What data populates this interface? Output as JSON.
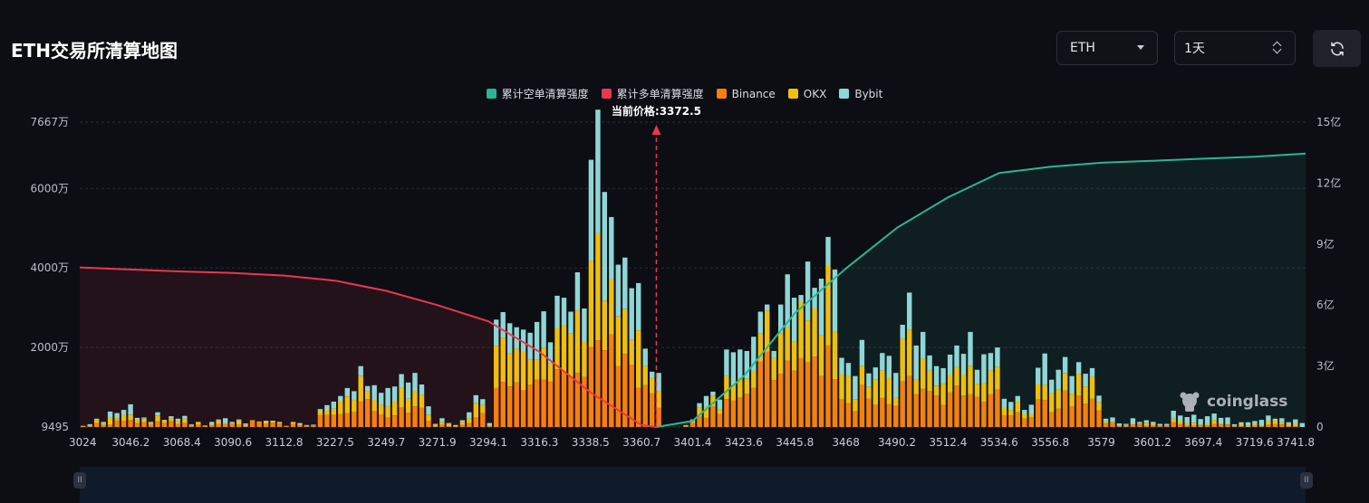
{
  "header": {
    "title": "ETH交易所清算地图",
    "symbol_select": "ETH",
    "interval_select": "1天"
  },
  "icons": {
    "refresh": "refresh-icon",
    "symbol_caret": "chevron-down-icon",
    "interval_caret": "up-down-chevron-icon",
    "logo": "coinglass-logo-icon"
  },
  "watermark": "coinglass",
  "colors": {
    "background": "#0d0e13",
    "short_cumulative": "#2bb594",
    "long_cumulative": "#e8384f",
    "binance": "#f7800c",
    "okx": "#f0bf0b",
    "bybit": "#8fd6d6",
    "current_price_line": "#e8384f"
  },
  "chart_data": {
    "type": "bar",
    "legend": [
      "累计空单清算强度",
      "累计多单清算强度",
      "Binance",
      "OKX",
      "Bybit"
    ],
    "current_price_label": "当前价格:3372.5",
    "current_price": 3372.5,
    "x_tick_labels": [
      "3024",
      "3046.2",
      "3068.4",
      "3090.6",
      "3112.8",
      "3227.5",
      "3249.7",
      "3271.9",
      "3294.1",
      "3316.3",
      "3338.5",
      "3360.7",
      "3401.4",
      "3423.6",
      "3445.8",
      "3468",
      "3490.2",
      "3512.4",
      "3534.6",
      "3556.8",
      "3579",
      "3601.2",
      "3697.4",
      "3719.6",
      "3741.8"
    ],
    "y_left_ticks": [
      "9495",
      "2000万",
      "4000万",
      "6000万",
      "7667万"
    ],
    "y_left_values": [
      9495,
      20000000,
      40000000,
      60000000,
      76670000
    ],
    "y_left_range": [
      9495,
      76670000
    ],
    "y_right_ticks": [
      "0",
      "3亿",
      "6亿",
      "9亿",
      "12亿",
      "15亿"
    ],
    "y_right_range": [
      0,
      1500000000
    ],
    "left_series_names": [
      "Binance",
      "OKX",
      "Bybit"
    ],
    "binance": [
      100000,
      200000,
      1000000,
      500000,
      600000,
      1600000,
      1600000,
      1800000,
      1000000,
      1200000,
      700000,
      1500000,
      1000000,
      1500000,
      800000,
      1000000,
      300000,
      600000,
      200000,
      400000,
      800000,
      700000,
      800000,
      600000,
      200000,
      1600000,
      1200000,
      800000,
      1100000,
      900000,
      200000,
      800000,
      400000,
      200000,
      300000,
      3000000,
      3000000,
      3100000,
      3300000,
      3500000,
      3700000,
      6400000,
      7000000,
      4000000,
      3200000,
      2500000,
      2900000,
      4900000,
      3600000,
      5200000,
      4900000,
      1600000,
      200000,
      500000,
      200000,
      100000,
      500000,
      1000000,
      2500000,
      3500000,
      100000,
      9800000,
      11300000,
      10200000,
      11200000,
      9200000,
      10700000,
      11900000,
      11900000,
      11400000,
      14500000,
      13800000,
      12600000,
      13600000,
      12600000,
      20100000,
      21800000,
      19300000,
      23300000,
      15300000,
      18400000,
      15700000,
      9900000,
      10500000,
      8500000,
      4900000,
      0,
      0,
      0,
      200000,
      1000000,
      2600000,
      2300000,
      5200000,
      3300000,
      7000000,
      6700000,
      7500000,
      8400000,
      9900000,
      16400000,
      18900000,
      11800000,
      13400000,
      16700000,
      14200000,
      17300000,
      16300000,
      17700000,
      12800000,
      20600000,
      12000000,
      6900000,
      6000000,
      4000000,
      10600000,
      7100000,
      5600000,
      7300000,
      5800000,
      5300000,
      11500000,
      12800000,
      8300000,
      9600000,
      9100000,
      8000000,
      5500000,
      8700000,
      10400000,
      7900000,
      8300000,
      7600000,
      6300000,
      8300000,
      9500000,
      3000000,
      2900000,
      3700000,
      2100000,
      2500000,
      6900000,
      6800000,
      3700000,
      4600000,
      9200000,
      5200000,
      7900000,
      5900000,
      7100000,
      4200000,
      1000000,
      1000000,
      200000,
      300000,
      700000,
      900000,
      300000,
      300000,
      300000,
      300000,
      1200000,
      800000,
      300000,
      400000,
      500000,
      400000,
      800000,
      700000,
      600000,
      200000,
      200000,
      0,
      300000,
      200000,
      600000,
      700000,
      600000,
      200000,
      200000,
      0
    ],
    "okx": [
      200000,
      100000,
      800000,
      500000,
      1700000,
      600000,
      1500000,
      1300000,
      800000,
      900000,
      400000,
      1400000,
      700000,
      700000,
      700000,
      1100000,
      200000,
      700000,
      100000,
      400000,
      800000,
      300000,
      200000,
      1000000,
      400000,
      100000,
      200000,
      600000,
      400000,
      300000,
      100000,
      400000,
      200000,
      200000,
      100000,
      1100000,
      1200000,
      1500000,
      3300000,
      4200000,
      3100000,
      6500000,
      2000000,
      2700000,
      2400000,
      2700000,
      3600000,
      4900000,
      3500000,
      3900000,
      3200000,
      1500000,
      400000,
      800000,
      500000,
      100000,
      800000,
      1200000,
      3600000,
      2000000,
      300000,
      10600000,
      11200000,
      8400000,
      8500000,
      9900000,
      6200000,
      5000000,
      8100000,
      4600000,
      10400000,
      11900000,
      10900000,
      15700000,
      8900000,
      21700000,
      26900000,
      12500000,
      13900000,
      12500000,
      11200000,
      6300000,
      14400000,
      4800000,
      3800000,
      4000000,
      0,
      0,
      0,
      100000,
      500000,
      2200000,
      2800000,
      2700000,
      1100000,
      5800000,
      4000000,
      4800000,
      3800000,
      4200000,
      7100000,
      10400000,
      5500000,
      10200000,
      8400000,
      7200000,
      14200000,
      10500000,
      12100000,
      10200000,
      19900000,
      11900000,
      6400000,
      6800000,
      2900000,
      4700000,
      3100000,
      6300000,
      6900000,
      6700000,
      2000000,
      10700000,
      11600000,
      3700000,
      7600000,
      5100000,
      2400000,
      5400000,
      4500000,
      4700000,
      5400000,
      7000000,
      3300000,
      4700000,
      5900000,
      5700000,
      1900000,
      1400000,
      2900000,
      1200000,
      700000,
      3900000,
      3800000,
      4800000,
      4800000,
      4300000,
      3200000,
      5500000,
      4300000,
      5500000,
      2100000,
      500000,
      300000,
      100000,
      200000,
      100000,
      100000,
      800000,
      600000,
      100000,
      100000,
      900000,
      800000,
      700000,
      700000,
      100000,
      500000,
      1000000,
      200000,
      300000,
      200000,
      600000,
      300000,
      400000,
      200000,
      1000000,
      1000000,
      600000,
      500000,
      700000,
      0
    ],
    "bybit": [
      0,
      400000,
      300000,
      300000,
      1600000,
      1300000,
      1200000,
      2600000,
      500000,
      300000,
      200000,
      800000,
      100000,
      500000,
      600000,
      700000,
      200000,
      0,
      100000,
      500000,
      300000,
      1200000,
      300000,
      300000,
      300000,
      0,
      0,
      200000,
      100000,
      100000,
      0,
      100000,
      400000,
      100000,
      200000,
      400000,
      1300000,
      1800000,
      1200000,
      2100000,
      2200000,
      2400000,
      1300000,
      3800000,
      3000000,
      4600000,
      3700000,
      3500000,
      4100000,
      4500000,
      2600000,
      2100000,
      200000,
      900000,
      300000,
      300000,
      400000,
      1500000,
      1900000,
      1500000,
      600000,
      6600000,
      6400000,
      7500000,
      5400000,
      5400000,
      6800000,
      9500000,
      9100000,
      5300000,
      8100000,
      6800000,
      5500000,
      9600000,
      8300000,
      25400000,
      31100000,
      27300000,
      15600000,
      13000000,
      13000000,
      12900000,
      11900000,
      4400000,
      1600000,
      4700000,
      0,
      0,
      0,
      200000,
      400000,
      1200000,
      2700000,
      1000000,
      2500000,
      6700000,
      8100000,
      7200000,
      6900000,
      8600000,
      5500000,
      1500000,
      1800000,
      7200000,
      13300000,
      11100000,
      1700000,
      14800000,
      5200000,
      14300000,
      7300000,
      15700000,
      4100000,
      3300000,
      5900000,
      6600000,
      3300000,
      3100000,
      4400000,
      5400000,
      6300000,
      3500000,
      9400000,
      8500000,
      6700000,
      3800000,
      4900000,
      3900000,
      5000000,
      5400000,
      5100000,
      8600000,
      3500000,
      7300000,
      4400000,
      4800000,
      2200000,
      2000000,
      1200000,
      1000000,
      2400000,
      4100000,
      7900000,
      3400000,
      5000000,
      4100000,
      4400000,
      2900000,
      3200000,
      2200000,
      1600000,
      600000,
      1100000,
      600000,
      300000,
      1400000,
      300000,
      600000,
      400000,
      400000,
      400000,
      2000000,
      1300000,
      1500000,
      2000000,
      1400000,
      1800000,
      1600000,
      1400000,
      1500000,
      300000,
      400000,
      900000,
      800000,
      1400000,
      1300000,
      400000,
      1000000,
      500000,
      1000000,
      1000000,
      1200000,
      0
    ],
    "long_cumulative_curve": {
      "price": [
        3024,
        3046.2,
        3068.4,
        3090.6,
        3112.8,
        3227.5,
        3249.7,
        3271.9,
        3294.1,
        3316.3,
        3338.5,
        3360.7,
        3372.5
      ],
      "value": [
        785000000,
        775000000,
        765000000,
        758000000,
        745000000,
        720000000,
        670000000,
        600000000,
        520000000,
        370000000,
        170000000,
        10000000,
        0
      ]
    },
    "short_cumulative_curve": {
      "price": [
        3372.5,
        3401.4,
        3423.6,
        3445.8,
        3468,
        3490.2,
        3512.4,
        3534.6,
        3556.8,
        3579,
        3601.2,
        3697.4,
        3719.6,
        3741.8
      ],
      "value": [
        0,
        30000000,
        250000000,
        560000000,
        780000000,
        980000000,
        1130000000,
        1250000000,
        1280000000,
        1300000000,
        1310000000,
        1320000000,
        1330000000,
        1345000000
      ]
    }
  }
}
